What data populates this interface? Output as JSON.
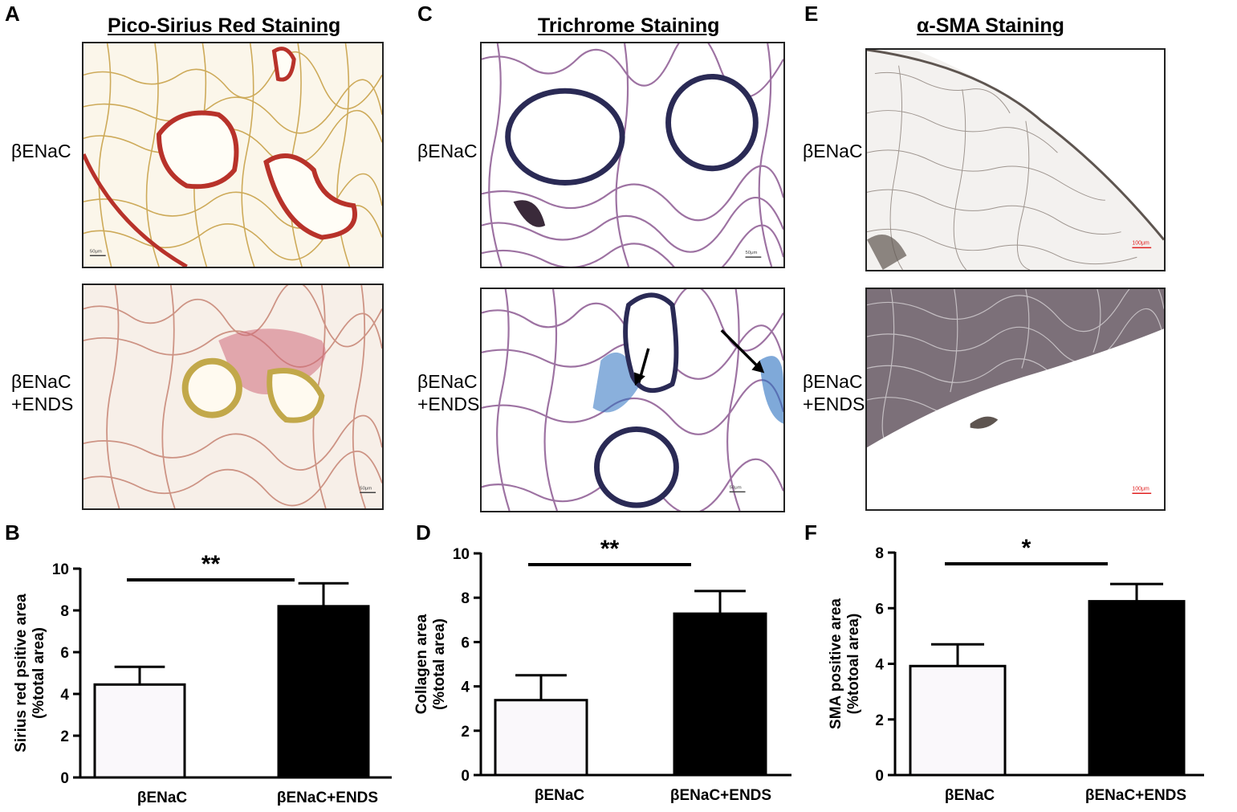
{
  "panels": {
    "A": {
      "letter": "A",
      "title": "Pico-Sirius Red Staining",
      "top_label": "βENaC",
      "bottom_label_1": "βENaC",
      "bottom_label_2": "+ENDS",
      "scale_top": "50μm",
      "scale_bottom": "50μm"
    },
    "C": {
      "letter": "C",
      "title": "Trichrome Staining",
      "top_label": "βENaC",
      "bottom_label_1": "βENaC",
      "bottom_label_2": "+ENDS",
      "scale_top": "50μm",
      "scale_bottom": "50μm"
    },
    "E": {
      "letter": "E",
      "title": "α-SMA Staining",
      "top_label": "βENaC",
      "bottom_label_1": "βENaC",
      "bottom_label_2": "+ENDS",
      "scale_top": "100μm",
      "scale_bottom": "100μm"
    },
    "B": {
      "letter": "B"
    },
    "D": {
      "letter": "D"
    },
    "F": {
      "letter": "F"
    }
  },
  "colors": {
    "sirius_bg": "#fbf6ea",
    "sirius_tissue": "#c9a24a",
    "sirius_collagen": "#b8322a",
    "sirius_bg2": "#f7efe8",
    "sirius_tissue2": "#c98a7a",
    "sirius_yellow": "#c2a84a",
    "tri_tissue": "#8c5a92",
    "tri_dark": "#2a2a55",
    "tri_blue": "#2a6fc0",
    "sma_tissue": "#8a7f78",
    "sma_dark": "#5e5550",
    "scale_red": "#e02020",
    "bar_control": "#faf8fb",
    "bar_ends": "#000000"
  },
  "chart_data": [
    {
      "type": "bar",
      "panel": "B",
      "categories": [
        "βENaC",
        "βENaC+ENDS"
      ],
      "values": [
        4.45,
        8.2
      ],
      "errors": [
        0.85,
        1.1
      ],
      "ylabel_line1": "Sirius red psitive area",
      "ylabel_line2": "(%total area)",
      "ylim": [
        0,
        10
      ],
      "yticks": [
        "0",
        "2",
        "4",
        "6",
        "8",
        "10"
      ],
      "significance": "**"
    },
    {
      "type": "bar",
      "panel": "D",
      "categories": [
        "βENaC",
        "βENaC+ENDS"
      ],
      "values": [
        3.38,
        7.28
      ],
      "errors": [
        1.12,
        1.02
      ],
      "ylabel_line1": "Collagen area",
      "ylabel_line2": "(%total area)",
      "ylim": [
        0,
        10
      ],
      "yticks": [
        "0",
        "2",
        "4",
        "6",
        "8",
        "10"
      ],
      "significance": "**"
    },
    {
      "type": "bar",
      "panel": "F",
      "categories": [
        "βENaC",
        "βENaC+ENDS"
      ],
      "values": [
        3.92,
        6.25
      ],
      "errors": [
        0.78,
        0.62
      ],
      "ylabel_line1": "SMA positive area",
      "ylabel_line2": "(%totoal area)",
      "ylim": [
        0,
        8
      ],
      "yticks": [
        "0",
        "2",
        "4",
        "6",
        "8"
      ],
      "significance": "*"
    }
  ]
}
